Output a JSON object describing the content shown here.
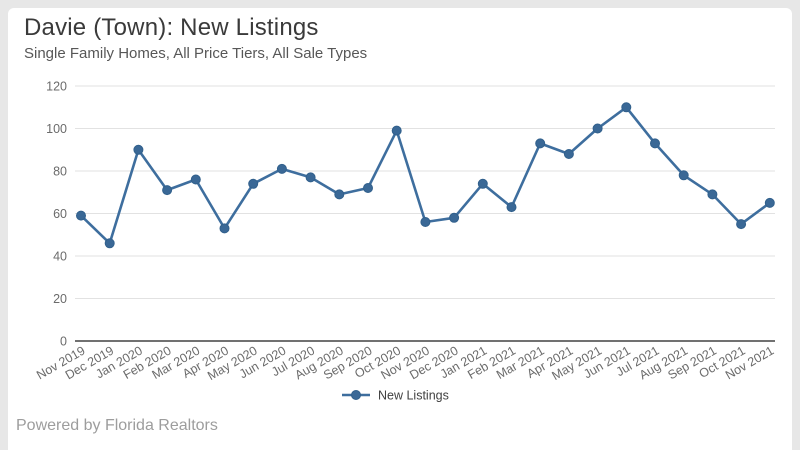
{
  "header": {
    "title": "Davie (Town): New Listings",
    "subtitle": "Single Family Homes, All Price Tiers, All Sale Types"
  },
  "footer": {
    "text": "Powered by Florida Realtors"
  },
  "legend": {
    "label": "New Listings",
    "position": "bottom"
  },
  "colors": {
    "page_background": "#e7e7e7",
    "card_background": "#ffffff",
    "series_line": "#3e6e9e",
    "marker_fill": "#3a6896",
    "marker_stroke": "#31608c",
    "gridline": "#e2e2e2",
    "axis_line": "#424242",
    "tick_label": "#6b6b6b",
    "legend_text": "#404040"
  },
  "chart_data": {
    "type": "line",
    "title": "Davie (Town): New Listings",
    "subtitle": "Single Family Homes, All Price Tiers, All Sale Types",
    "categories": [
      "Nov 2019",
      "Dec 2019",
      "Jan 2020",
      "Feb 2020",
      "Mar 2020",
      "Apr 2020",
      "May 2020",
      "Jun 2020",
      "Jul 2020",
      "Aug 2020",
      "Sep 2020",
      "Oct 2020",
      "Nov 2020",
      "Dec 2020",
      "Jan 2021",
      "Feb 2021",
      "Mar 2021",
      "Apr 2021",
      "May 2021",
      "Jun 2021",
      "Jul 2021",
      "Aug 2021",
      "Sep 2021",
      "Oct 2021",
      "Nov 2021"
    ],
    "series": [
      {
        "name": "New Listings",
        "values": [
          59,
          46,
          90,
          71,
          76,
          53,
          74,
          81,
          77,
          69,
          72,
          99,
          56,
          58,
          74,
          63,
          93,
          88,
          100,
          110,
          93,
          78,
          69,
          55,
          65
        ]
      }
    ],
    "xlabel": "",
    "ylabel": "",
    "ylim": [
      0,
      120
    ],
    "yticks": [
      0,
      20,
      40,
      60,
      80,
      100,
      120
    ],
    "grid": true,
    "marker": "circle",
    "legend_position": "bottom",
    "x_label_rotation": -30
  }
}
